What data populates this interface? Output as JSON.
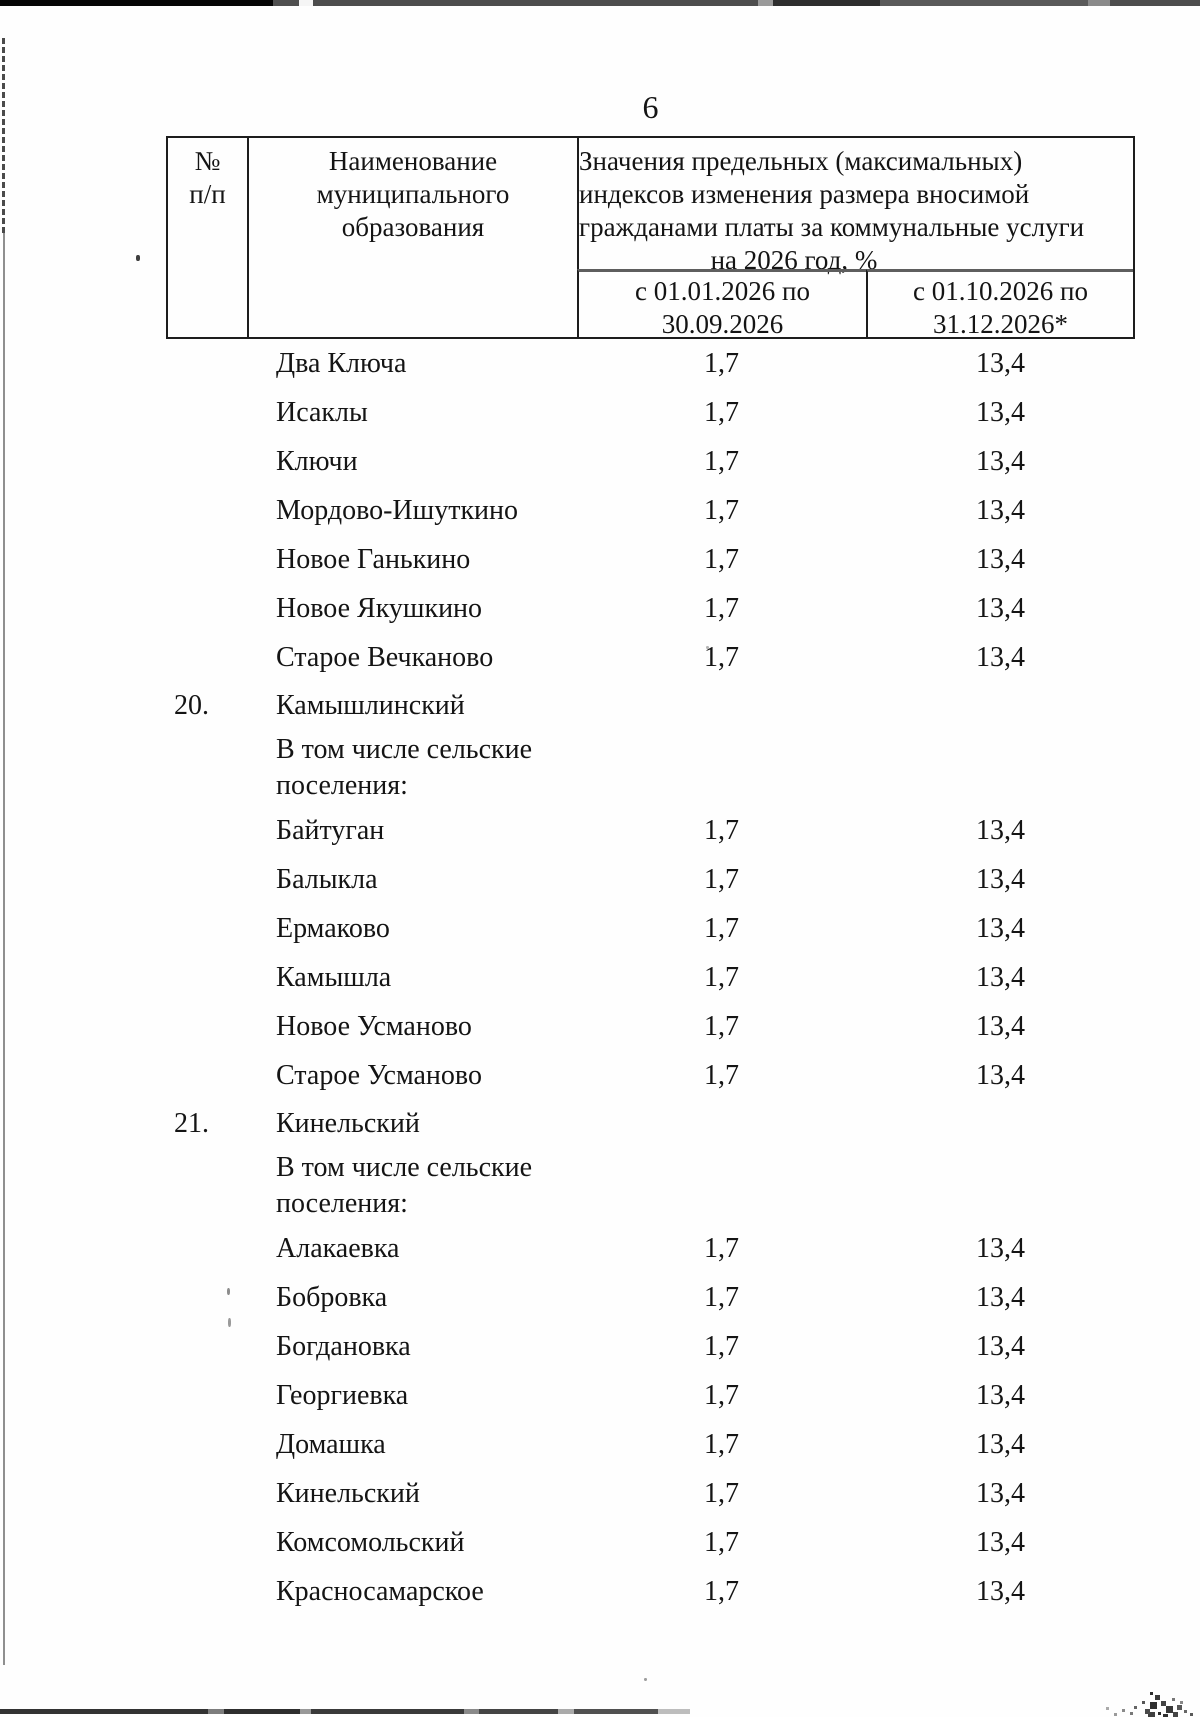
{
  "page": {
    "number": "6"
  },
  "table": {
    "header": {
      "col_num": [
        "№",
        "п/п"
      ],
      "col_name": [
        "Наименование",
        "муниципального",
        "образования"
      ],
      "col_values": [
        "Значения предельных (максимальных)",
        "индексов изменения размера вносимой",
        "гражданами платы за коммунальные услуги",
        "на 2026 год, %"
      ],
      "period1": [
        "с 01.01.2026 по",
        "30.09.2026"
      ],
      "period2": [
        "с 01.10.2026 по",
        "31.12.2026*"
      ]
    },
    "rows": [
      {
        "type": "data",
        "num": "",
        "name": "Два Ключа",
        "v1": "1,7",
        "v2": "13,4"
      },
      {
        "type": "data",
        "num": "",
        "name": "Исаклы",
        "v1": "1,7",
        "v2": "13,4"
      },
      {
        "type": "data",
        "num": "",
        "name": "Ключи",
        "v1": "1,7",
        "v2": "13,4"
      },
      {
        "type": "data",
        "num": "",
        "name": "Мордово-Ишуткино",
        "v1": "1,7",
        "v2": "13,4"
      },
      {
        "type": "data",
        "num": "",
        "name": "Новое Ганькино",
        "v1": "1,7",
        "v2": "13,4"
      },
      {
        "type": "data",
        "num": "",
        "name": "Новое Якушкино",
        "v1": "1,7",
        "v2": "13,4"
      },
      {
        "type": "data",
        "num": "",
        "name": "Старое Вечканово",
        "v1": "1,7",
        "v2": "13,4"
      },
      {
        "type": "section",
        "num": "20.",
        "name": "Камышлинский",
        "v1": "",
        "v2": ""
      },
      {
        "type": "sublabel",
        "num": "",
        "name": [
          "В том числе сельские",
          "поселения:"
        ],
        "v1": "",
        "v2": ""
      },
      {
        "type": "data",
        "num": "",
        "name": "Байтуган",
        "v1": "1,7",
        "v2": "13,4"
      },
      {
        "type": "data",
        "num": "",
        "name": "Балыкла",
        "v1": "1,7",
        "v2": "13,4"
      },
      {
        "type": "data",
        "num": "",
        "name": "Ермаково",
        "v1": "1,7",
        "v2": "13,4"
      },
      {
        "type": "data",
        "num": "",
        "name": "Камышла",
        "v1": "1,7",
        "v2": "13,4"
      },
      {
        "type": "data",
        "num": "",
        "name": "Новое Усманово",
        "v1": "1,7",
        "v2": "13,4"
      },
      {
        "type": "data",
        "num": "",
        "name": "Старое Усманово",
        "v1": "1,7",
        "v2": "13,4"
      },
      {
        "type": "section",
        "num": "21.",
        "name": "Кинельский",
        "v1": "",
        "v2": ""
      },
      {
        "type": "sublabel",
        "num": "",
        "name": [
          "В том числе сельские",
          "поселения:"
        ],
        "v1": "",
        "v2": ""
      },
      {
        "type": "data",
        "num": "",
        "name": "Алакаевка",
        "v1": "1,7",
        "v2": "13,4"
      },
      {
        "type": "data",
        "num": "",
        "name": "Бобровка",
        "v1": "1,7",
        "v2": "13,4"
      },
      {
        "type": "data",
        "num": "",
        "name": "Богдановка",
        "v1": "1,7",
        "v2": "13,4"
      },
      {
        "type": "data",
        "num": "",
        "name": "Георгиевка",
        "v1": "1,7",
        "v2": "13,4"
      },
      {
        "type": "data",
        "num": "",
        "name": "Домашка",
        "v1": "1,7",
        "v2": "13,4"
      },
      {
        "type": "data",
        "num": "",
        "name": "Кинельский",
        "v1": "1,7",
        "v2": "13,4"
      },
      {
        "type": "data",
        "num": "",
        "name": "Комсомольский",
        "v1": "1,7",
        "v2": "13,4"
      },
      {
        "type": "data",
        "num": "",
        "name": "Красносамарское",
        "v1": "1,7",
        "v2": "13,4"
      }
    ]
  }
}
